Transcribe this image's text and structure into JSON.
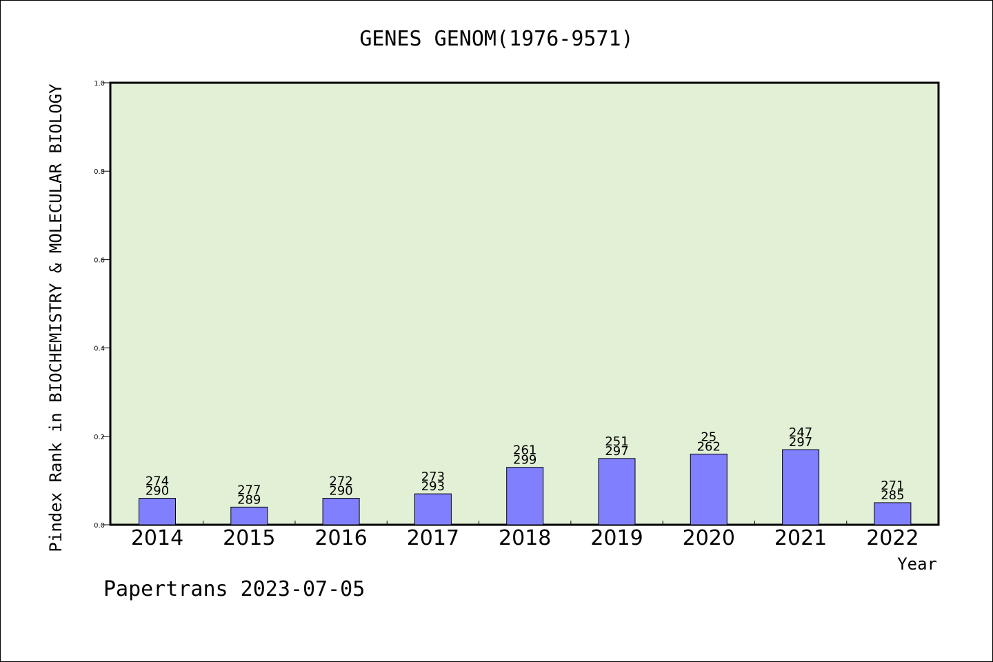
{
  "chart_data": {
    "type": "bar",
    "title": "GENES GENOM(1976-9571)",
    "xlabel": "Year",
    "ylabel": "Pindex Rank in BIOCHEMISTRY & MOLECULAR BIOLOGY",
    "ylim": [
      0,
      1.0
    ],
    "yticks": [
      "0.0",
      "0.2",
      "0.4",
      "0.6",
      "0.8",
      "1.0"
    ],
    "grid": false,
    "colors": {
      "plot_bg": "#e2f0d6",
      "bar": "#8080ff",
      "bar_edge": "#000000"
    },
    "categories": [
      "2014",
      "2015",
      "2016",
      "2017",
      "2018",
      "2019",
      "2020",
      "2021",
      "2022"
    ],
    "values": [
      0.06,
      0.04,
      0.06,
      0.07,
      0.13,
      0.15,
      0.16,
      0.17,
      0.05
    ],
    "labels_top": [
      "274",
      "277",
      "272",
      "273",
      "261",
      "251",
      "25",
      "247",
      "271"
    ],
    "labels_bottom": [
      "290",
      "289",
      "290",
      "293",
      "299",
      "297",
      "262",
      "297",
      "285"
    ]
  },
  "footer": "Papertrans 2023-07-05"
}
